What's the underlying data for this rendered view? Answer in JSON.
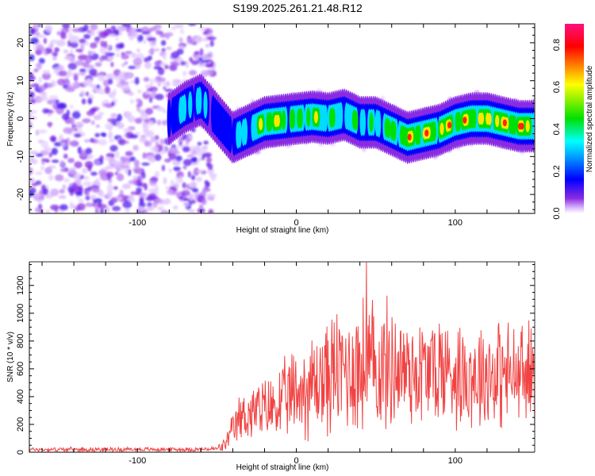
{
  "title": "S199.2025.261.21.48.R12",
  "chart_data": [
    {
      "type": "heatmap",
      "name": "spectrogram",
      "xlabel": "Height of straight line (km)",
      "ylabel": "Frequency (Hz)",
      "xlim": [
        -168,
        150
      ],
      "ylim": [
        -25,
        25
      ],
      "xticks": [
        -100,
        0,
        100
      ],
      "yticks": [
        -20,
        -10,
        0,
        10,
        20
      ],
      "colorbar": {
        "label": "Normalized spectral amplitude",
        "range": [
          0,
          0.9
        ],
        "ticks": [
          0.0,
          0.2,
          0.4,
          0.6,
          0.8
        ],
        "colors": [
          "#ffffff",
          "#d9b8ff",
          "#8a2be2",
          "#0000ff",
          "#00b0ff",
          "#00ffff",
          "#00e000",
          "#ffff00",
          "#ff8000",
          "#ff0000",
          "#ff1080"
        ]
      },
      "noise_region_x": [
        -168,
        -60
      ],
      "ridge": {
        "x": [
          -80,
          -70,
          -60,
          -50,
          -40,
          -30,
          -20,
          -10,
          0,
          10,
          20,
          30,
          40,
          50,
          60,
          70,
          80,
          90,
          100,
          110,
          120,
          130,
          140,
          150
        ],
        "freq": [
          0,
          3,
          5,
          0,
          -5,
          -3,
          -1,
          -0.5,
          0,
          0.5,
          0,
          1,
          -1,
          -1,
          -3,
          -5,
          -4,
          -3,
          -1,
          0,
          0,
          -1,
          -2,
          -2
        ],
        "peak_amplitude": [
          0.35,
          0.45,
          0.4,
          0.3,
          0.35,
          0.5,
          0.75,
          0.7,
          0.6,
          0.7,
          0.6,
          0.5,
          0.55,
          0.5,
          0.6,
          0.8,
          0.85,
          0.8,
          0.85,
          0.8,
          0.85,
          0.85,
          0.9,
          0.9
        ]
      }
    },
    {
      "type": "line",
      "name": "snr",
      "xlabel": "Height of straight line (km)",
      "ylabel": "SNR (10 * v/v)",
      "xlim": [
        -168,
        150
      ],
      "ylim": [
        0,
        1370
      ],
      "xticks": [
        -100,
        0,
        100
      ],
      "yticks": [
        0,
        200,
        400,
        600,
        800,
        1000,
        1200
      ],
      "color": "#ee2222",
      "envelope": {
        "x": [
          -168,
          -60,
          -50,
          -45,
          -40,
          -35,
          -30,
          -20,
          -10,
          0,
          10,
          20,
          30,
          40,
          50,
          60,
          70,
          80,
          90,
          100,
          110,
          120,
          130,
          140,
          150
        ],
        "mean": [
          20,
          20,
          25,
          50,
          150,
          250,
          280,
          300,
          350,
          430,
          480,
          550,
          600,
          620,
          600,
          620,
          600,
          580,
          600,
          580,
          560,
          580,
          560,
          540,
          560
        ],
        "amp": [
          15,
          15,
          20,
          50,
          120,
          180,
          200,
          220,
          260,
          320,
          380,
          420,
          450,
          500,
          480,
          450,
          420,
          400,
          420,
          380,
          380,
          400,
          380,
          380,
          380
        ]
      },
      "peak": {
        "x": 44,
        "y": 1370
      }
    }
  ]
}
